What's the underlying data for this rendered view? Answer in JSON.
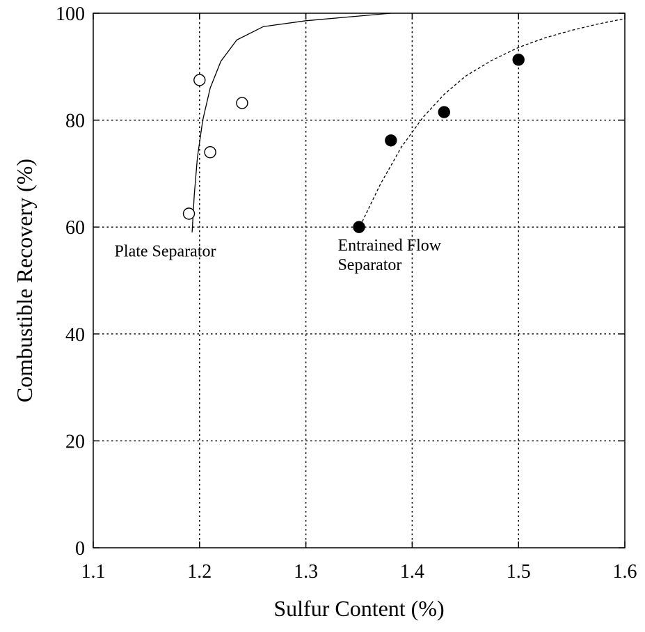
{
  "chart_data": {
    "type": "scatter",
    "title": "",
    "xlabel": "Sulfur Content (%)",
    "ylabel": "Combustible Recovery (%)",
    "xlim": [
      1.1,
      1.6
    ],
    "ylim": [
      0,
      100
    ],
    "xticks": [
      1.1,
      1.2,
      1.3,
      1.4,
      1.5,
      1.6
    ],
    "yticks": [
      0,
      20,
      40,
      60,
      80,
      100
    ],
    "xtick_labels": [
      "1.1",
      "1.2",
      "1.3",
      "1.4",
      "1.5",
      "1.6"
    ],
    "ytick_labels": [
      "0",
      "20",
      "40",
      "60",
      "80",
      "100"
    ],
    "grid": true,
    "legend": "none",
    "series": [
      {
        "marker": "open-circle",
        "points": [
          {
            "x": 1.19,
            "y": 62.5
          },
          {
            "x": 1.2,
            "y": 87.5
          },
          {
            "x": 1.21,
            "y": 74.0
          },
          {
            "x": 1.24,
            "y": 83.2
          }
        ],
        "fit_line": {
          "style": "solid",
          "points": [
            {
              "x": 1.193,
              "y": 59
            },
            {
              "x": 1.195,
              "y": 66
            },
            {
              "x": 1.198,
              "y": 73
            },
            {
              "x": 1.203,
              "y": 80
            },
            {
              "x": 1.21,
              "y": 86
            },
            {
              "x": 1.22,
              "y": 91
            },
            {
              "x": 1.235,
              "y": 95
            },
            {
              "x": 1.26,
              "y": 97.5
            },
            {
              "x": 1.3,
              "y": 98.6
            },
            {
              "x": 1.34,
              "y": 99.3
            },
            {
              "x": 1.38,
              "y": 100
            }
          ]
        }
      },
      {
        "marker": "filled-circle",
        "points": [
          {
            "x": 1.35,
            "y": 60.0
          },
          {
            "x": 1.38,
            "y": 76.2
          },
          {
            "x": 1.43,
            "y": 81.5
          },
          {
            "x": 1.5,
            "y": 91.3
          }
        ],
        "fit_line": {
          "style": "dashed",
          "points": [
            {
              "x": 1.353,
              "y": 61
            },
            {
              "x": 1.37,
              "y": 68
            },
            {
              "x": 1.39,
              "y": 75
            },
            {
              "x": 1.41,
              "y": 80.5
            },
            {
              "x": 1.43,
              "y": 84.8
            },
            {
              "x": 1.45,
              "y": 88.2
            },
            {
              "x": 1.475,
              "y": 91.2
            },
            {
              "x": 1.5,
              "y": 93.6
            },
            {
              "x": 1.525,
              "y": 95.4
            },
            {
              "x": 1.55,
              "y": 96.8
            },
            {
              "x": 1.575,
              "y": 98.0
            },
            {
              "x": 1.6,
              "y": 99.0
            }
          ]
        }
      }
    ],
    "annotations": [
      {
        "lines": [
          "Plate Separator"
        ],
        "x": 1.12,
        "y": 54.5
      },
      {
        "lines": [
          "Entrained Flow",
          "Separator"
        ],
        "x": 1.33,
        "y": 55.6
      }
    ]
  }
}
